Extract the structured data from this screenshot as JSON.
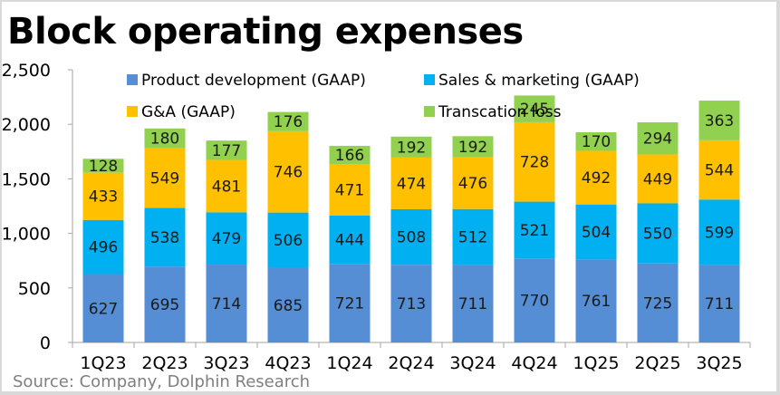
{
  "chart_data": {
    "type": "bar",
    "stacked": true,
    "title": "Block operating expenses",
    "source": "Source: Company, Dolphin Research",
    "xlabel": "",
    "ylabel": "",
    "ylim": [
      0,
      2500
    ],
    "yticks": [
      0,
      500,
      1000,
      1500,
      2000,
      2500
    ],
    "ytick_labels": [
      "0",
      "500",
      "1,000",
      "1,500",
      "2,000",
      "2,500"
    ],
    "grid": false,
    "legend_position": "top-center",
    "categories": [
      "1Q23",
      "2Q23",
      "3Q23",
      "4Q23",
      "1Q24",
      "2Q24",
      "3Q24",
      "4Q24",
      "1Q25",
      "2Q25",
      "3Q25"
    ],
    "series": [
      {
        "name": "Product development (GAAP)",
        "color": "#558ED5",
        "values": [
          627,
          695,
          714,
          685,
          721,
          713,
          711,
          770,
          761,
          725,
          711
        ]
      },
      {
        "name": "Sales & marketing (GAAP)",
        "color": "#00B0F0",
        "values": [
          496,
          538,
          479,
          506,
          444,
          508,
          512,
          521,
          504,
          550,
          599
        ]
      },
      {
        "name": "G&A (GAAP)",
        "color": "#FFC000",
        "values": [
          433,
          549,
          481,
          746,
          471,
          474,
          476,
          728,
          492,
          449,
          544
        ]
      },
      {
        "name": "Transcation loss",
        "color": "#92D050",
        "values": [
          128,
          180,
          177,
          176,
          166,
          192,
          192,
          245,
          170,
          294,
          363
        ]
      }
    ]
  }
}
